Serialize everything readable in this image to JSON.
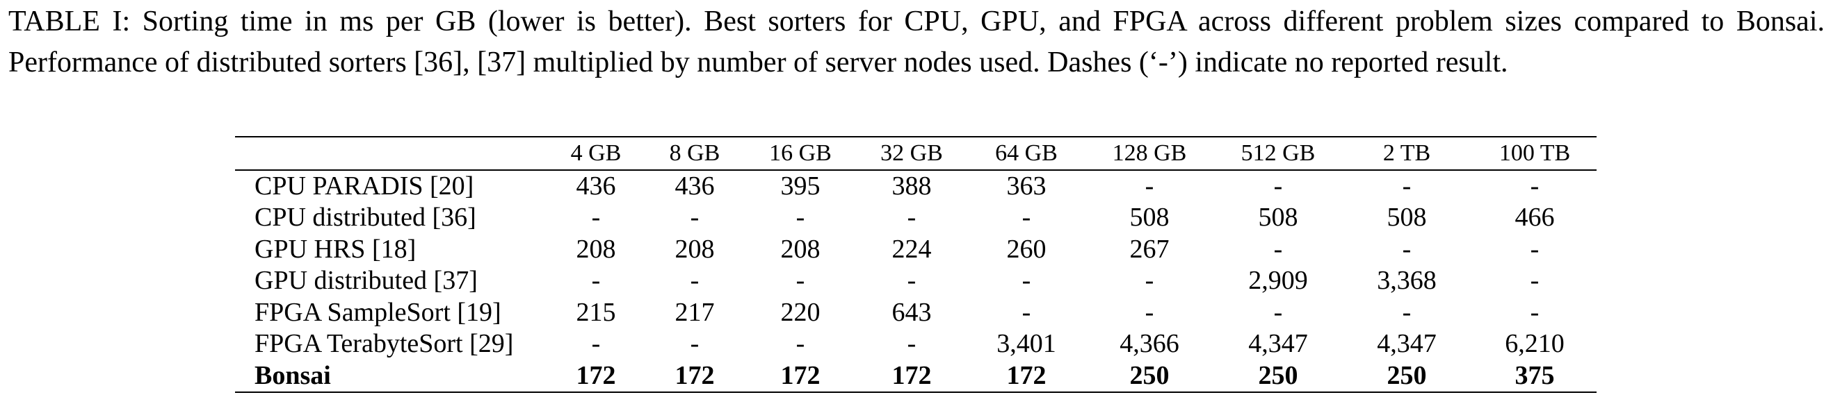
{
  "caption": "TABLE I: Sorting time in ms per GB (lower is better). Best sorters for CPU, GPU, and FPGA across different problem sizes compared to Bonsai. Performance of distributed sorters [36], [37] multiplied by number of server nodes used. Dashes (‘-’) indicate no reported result.",
  "table": {
    "columns": [
      "",
      "4 GB",
      "8 GB",
      "16 GB",
      "32 GB",
      "64 GB",
      "128 GB",
      "512 GB",
      "2 TB",
      "100 TB"
    ],
    "rows": [
      {
        "name": "CPU PARADIS [20]",
        "values": [
          "436",
          "436",
          "395",
          "388",
          "363",
          "-",
          "-",
          "-",
          "-"
        ]
      },
      {
        "name": "CPU distributed [36]",
        "values": [
          "-",
          "-",
          "-",
          "-",
          "-",
          "508",
          "508",
          "508",
          "466"
        ]
      },
      {
        "name": "GPU HRS [18]",
        "values": [
          "208",
          "208",
          "208",
          "224",
          "260",
          "267",
          "-",
          "-",
          "-"
        ]
      },
      {
        "name": "GPU distributed [37]",
        "values": [
          "-",
          "-",
          "-",
          "-",
          "-",
          "-",
          "2,909",
          "3,368",
          "-"
        ]
      },
      {
        "name": "FPGA SampleSort [19]",
        "values": [
          "215",
          "217",
          "220",
          "643",
          "-",
          "-",
          "-",
          "-",
          "-"
        ]
      },
      {
        "name": "FPGA TerabyteSort [29]",
        "values": [
          "-",
          "-",
          "-",
          "-",
          "3,401",
          "4,366",
          "4,347",
          "4,347",
          "6,210"
        ]
      },
      {
        "name": "Bonsai",
        "bold": true,
        "values": [
          "172",
          "172",
          "172",
          "172",
          "172",
          "250",
          "250",
          "250",
          "375"
        ]
      }
    ]
  }
}
